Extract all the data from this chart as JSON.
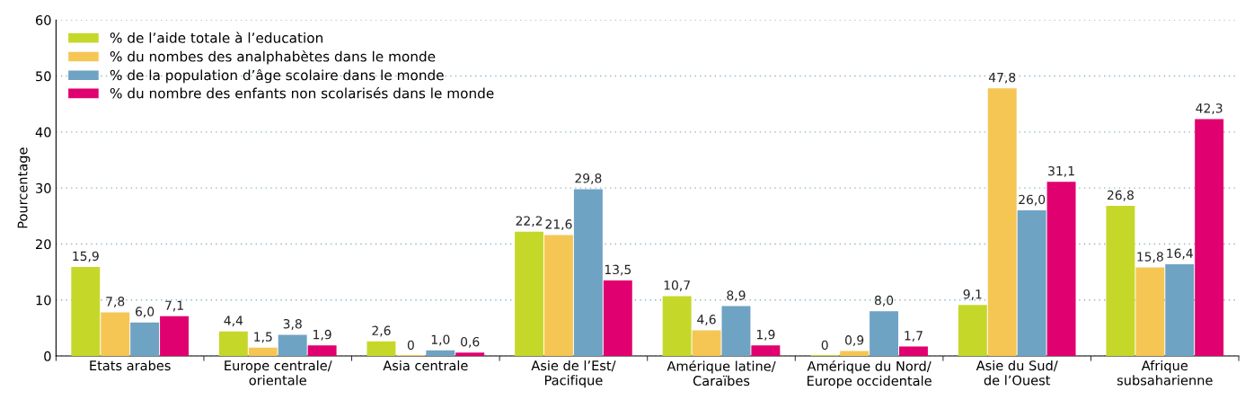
{
  "chart_data": {
    "type": "bar",
    "ylabel": "Pourcentage",
    "categories": [
      "Etats arabes",
      "Europe centrale/\norientale",
      "Asia centrale",
      "Asie de l’Est/\nPacifique",
      "Amérique latine/\nCaraïbes",
      "Amérique du Nord/\nEurope occidentale",
      "Asie du Sud/\nde l’Ouest",
      "Afrique\nsubsaharienne"
    ],
    "series": [
      {
        "name": "% de l’aide totale à l’education",
        "color": "#c5d82a",
        "values": [
          15.9,
          4.4,
          2.6,
          22.2,
          10.7,
          0,
          9.1,
          26.8
        ],
        "value_labels": [
          "15,9",
          "4,4",
          "2,6",
          "22,2",
          "10,7",
          "0",
          "9,1",
          "26,8"
        ]
      },
      {
        "name": "% du nombes des analphabètes dans le monde",
        "color": "#f6c655",
        "values": [
          7.8,
          1.5,
          0,
          21.6,
          4.6,
          0.9,
          47.8,
          15.8
        ],
        "value_labels": [
          "7,8",
          "1,5",
          "0",
          "21,6",
          "4,6",
          "0,9",
          "47,8",
          "15,8"
        ]
      },
      {
        "name": "% de la population d’âge scolaire dans le monde",
        "color": "#6fa3c4",
        "values": [
          6.0,
          3.8,
          1.0,
          29.8,
          8.9,
          8.0,
          26.0,
          16.4
        ],
        "value_labels": [
          "6,0",
          "3,8",
          "1,0",
          "29,8",
          "8,9",
          "8,0",
          "26,0",
          "16,4"
        ]
      },
      {
        "name": "% du nombre des enfants non scolarisés dans le monde",
        "color": "#e0006f",
        "values": [
          7.1,
          1.9,
          0.6,
          13.5,
          1.9,
          1.7,
          31.1,
          42.3
        ],
        "value_labels": [
          "7,1",
          "1,9",
          "0,6",
          "13,5",
          "1,9",
          "1,7",
          "31,1",
          "42,3"
        ]
      }
    ],
    "ylim": [
      0,
      60
    ],
    "yticks": [
      0,
      10,
      20,
      30,
      40,
      50,
      60
    ],
    "grid": "y",
    "legend": "top left"
  }
}
